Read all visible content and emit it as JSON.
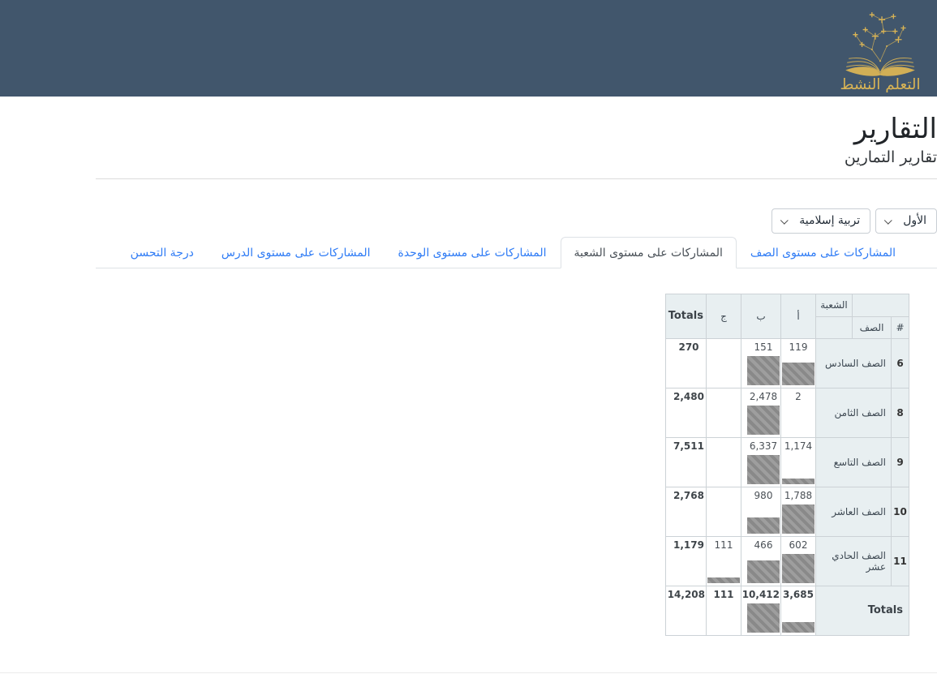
{
  "header": {
    "logo_text": "التعلم النشط"
  },
  "page": {
    "title": "التقارير",
    "subtitle": "تقارير التمارين"
  },
  "filters": {
    "semester": {
      "value": "الأول"
    },
    "subject": {
      "value": "تربية إسلامية"
    }
  },
  "tabs": [
    {
      "name": "tab-class-level",
      "label": "المشاركات على مستوى الصف",
      "active": false
    },
    {
      "name": "tab-section-level",
      "label": "المشاركات على مستوى الشعبة",
      "active": true
    },
    {
      "name": "tab-unit-level",
      "label": "المشاركات على مستوى الوحدة",
      "active": false
    },
    {
      "name": "tab-lesson-level",
      "label": "المشاركات على مستوى الدرس",
      "active": false
    },
    {
      "name": "tab-improvement-level",
      "label": "درجة التحسن",
      "active": false
    }
  ],
  "table": {
    "headers": {
      "section_group": "الشعبة",
      "class": "الصف",
      "index": "#",
      "sections": [
        "أ",
        "ب",
        "ج"
      ],
      "totals": "Totals"
    },
    "rows": [
      {
        "index": "6",
        "class_name": "الصف السادس",
        "values": [
          "119",
          "151",
          ""
        ],
        "total": "270"
      },
      {
        "index": "8",
        "class_name": "الصف الثامن",
        "values": [
          "2",
          "2,478",
          ""
        ],
        "total": "2,480"
      },
      {
        "index": "9",
        "class_name": "الصف التاسع",
        "values": [
          "1,174",
          "6,337",
          ""
        ],
        "total": "7,511"
      },
      {
        "index": "10",
        "class_name": "الصف العاشر",
        "values": [
          "1,788",
          "980",
          ""
        ],
        "total": "2,768"
      },
      {
        "index": "11",
        "class_name": "الصف الحادي عشر",
        "values": [
          "602",
          "466",
          "111"
        ],
        "total": "1,179"
      }
    ],
    "totals_row": {
      "label": "Totals",
      "values": [
        "3,685",
        "10,412",
        "111"
      ],
      "total": "14,208"
    }
  },
  "colors": {
    "header_bg": "#41566c",
    "logo_gold": "#d9b455",
    "tab_link": "#2e7bf5",
    "cell_bg": "#e8eff1",
    "table_border": "#ccd2d6",
    "bar_base": "#9e9e9e",
    "bar_stripe": "#898989"
  }
}
